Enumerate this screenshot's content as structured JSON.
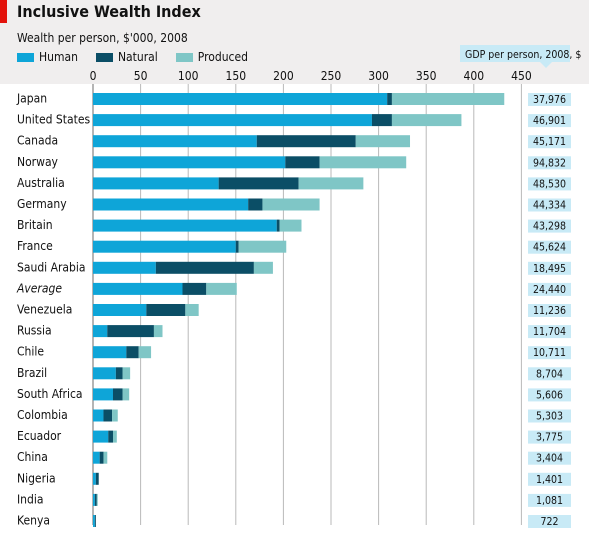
{
  "title": "Inclusive Wealth Index",
  "subtitle": "Wealth per person, $'000, 2008",
  "colors": {
    "human": "#0ea5d8",
    "natural": "#0b4e66",
    "produced": "#7fc6c6",
    "gdp_box": "#c8eaf6",
    "background": "#f0eeee"
  },
  "legend": [
    "Human",
    "Natural",
    "Produced"
  ],
  "gdp_header": "GDP per person, 2008, $",
  "chart_data": {
    "type": "bar",
    "orientation": "horizontal",
    "stacked": true,
    "title": "Inclusive Wealth Index",
    "subtitle": "Wealth per person, $'000, 2008",
    "xlim": [
      0,
      450
    ],
    "ticks": [
      0,
      50,
      100,
      150,
      200,
      250,
      300,
      350,
      400,
      450
    ],
    "tick_labels": [
      "0",
      "50",
      "100",
      "150",
      "200",
      "250",
      "300",
      "350",
      "400",
      "450"
    ],
    "grid": true,
    "legend_position": "top-left",
    "categories": [
      "Japan",
      "United States",
      "Canada",
      "Norway",
      "Australia",
      "Germany",
      "Britain",
      "France",
      "Saudi Arabia",
      "Average",
      "Venezuela",
      "Russia",
      "Chile",
      "Brazil",
      "South Africa",
      "Colombia",
      "Ecuador",
      "China",
      "Nigeria",
      "India",
      "Kenya"
    ],
    "italic_categories": [
      "Average"
    ],
    "series": [
      {
        "name": "Human",
        "values": [
          309,
          293,
          172,
          202,
          132,
          163,
          193,
          150,
          66,
          94,
          56,
          15,
          35,
          24,
          21,
          11,
          16,
          7,
          3,
          2,
          2
        ]
      },
      {
        "name": "Natural",
        "values": [
          5,
          21,
          104,
          36,
          84,
          15,
          3,
          3,
          103,
          25,
          41,
          49,
          13,
          7,
          10,
          9,
          5,
          4,
          3,
          2,
          1
        ]
      },
      {
        "name": "Produced",
        "values": [
          118,
          73,
          57,
          91,
          68,
          60,
          23,
          50,
          20,
          32,
          14,
          9,
          13,
          8,
          7,
          6,
          4,
          4,
          0,
          1,
          0
        ]
      }
    ],
    "gdp_per_person": [
      "37,976",
      "46,901",
      "45,171",
      "94,832",
      "48,530",
      "44,334",
      "43,298",
      "45,624",
      "18,495",
      "24,440",
      "11,236",
      "11,704",
      "10,711",
      "8,704",
      "5,606",
      "5,303",
      "3,775",
      "3,404",
      "1,401",
      "1,081",
      "722"
    ]
  }
}
